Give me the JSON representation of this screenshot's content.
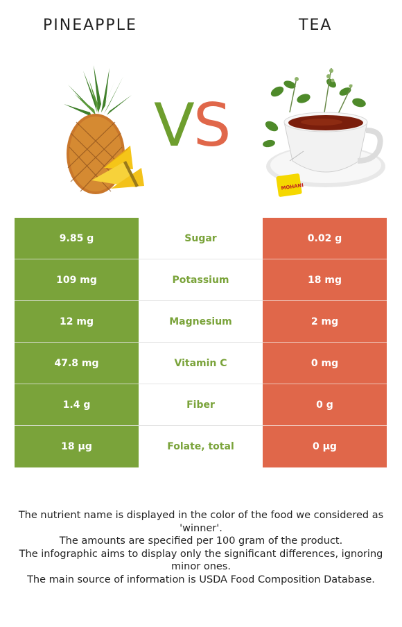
{
  "header": {
    "left_title": "PINEAPPLE",
    "right_title": "TEA"
  },
  "vs": {
    "v": "V",
    "s": "S"
  },
  "colors": {
    "winner_left": "#7aa33a",
    "winner_right": "#e0674a"
  },
  "rows": [
    {
      "left": "9.85 g",
      "name": "Sugar",
      "right": "0.02 g"
    },
    {
      "left": "109 mg",
      "name": "Potassium",
      "right": "18 mg"
    },
    {
      "left": "12 mg",
      "name": "Magnesium",
      "right": "2 mg"
    },
    {
      "left": "47.8 mg",
      "name": "Vitamin C",
      "right": "0 mg"
    },
    {
      "left": "1.4 g",
      "name": "Fiber",
      "right": "0 g"
    },
    {
      "left": "18 µg",
      "name": "Folate, total",
      "right": "0 µg"
    }
  ],
  "footer": {
    "line1": "The nutrient name is displayed in the color of the food we considered as 'winner'.",
    "line2": "The amounts are specified per 100 gram of the product.",
    "line3": "The infographic aims to display only the significant differences, ignoring minor ones.",
    "line4": "The main source of information is USDA Food Composition Database."
  },
  "tea_label_text": "MOHANI"
}
